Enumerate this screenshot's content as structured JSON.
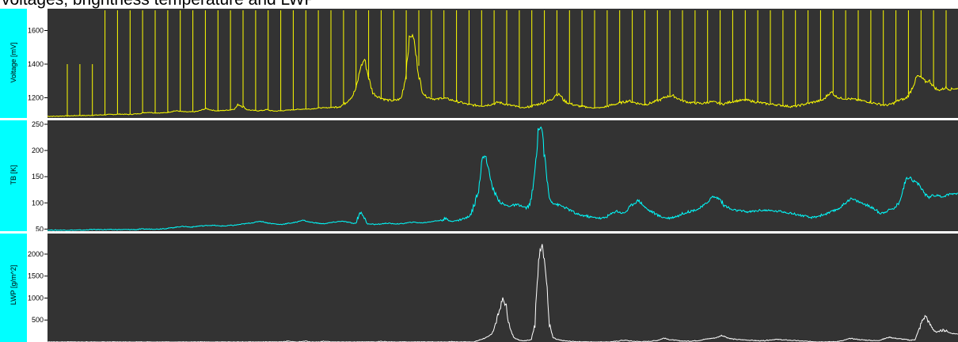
{
  "header": {
    "caption": "voltages, brightness temperature and LWP"
  },
  "chart_data": [
    {
      "type": "line",
      "ylabel": "Voltage [mV]",
      "ylim": [
        1080,
        1720
      ],
      "yticks": [
        1200,
        1400,
        1600
      ],
      "color": "#ffff00",
      "background": "#333333",
      "labelColor": "#00ffff",
      "series": [
        {
          "name": "",
          "values": [
            1090,
            1090,
            1090,
            1091,
            1092,
            1092,
            1093,
            1094,
            1095,
            1094,
            1095,
            1096,
            1097,
            1098,
            1099,
            1100,
            1101,
            1102,
            1103,
            1102,
            1101,
            1103,
            1104,
            1108,
            1112,
            1114,
            1111,
            1110,
            1110,
            1111,
            1115,
            1121,
            1122,
            1118,
            1116,
            1116,
            1117,
            1120,
            1128,
            1136,
            1129,
            1124,
            1122,
            1124,
            1126,
            1128,
            1134,
            1160,
            1150,
            1130,
            1126,
            1124,
            1123,
            1125,
            1130,
            1123,
            1121,
            1122,
            1124,
            1126,
            1128,
            1130,
            1131,
            1133,
            1133,
            1134,
            1137,
            1140,
            1140,
            1141,
            1143,
            1145,
            1150,
            1163,
            1186,
            1210,
            1260,
            1380,
            1430,
            1320,
            1230,
            1210,
            1200,
            1190,
            1185,
            1183,
            1187,
            1196,
            1310,
            1560,
            1570,
            1390,
            1250,
            1210,
            1200,
            1194,
            1190,
            1200,
            1196,
            1189,
            1183,
            1176,
            1171,
            1163,
            1158,
            1156,
            1154,
            1153,
            1156,
            1160,
            1166,
            1174,
            1166,
            1160,
            1154,
            1150,
            1144,
            1140,
            1144,
            1150,
            1156,
            1164,
            1170,
            1180,
            1190,
            1218,
            1220,
            1185,
            1170,
            1162,
            1154,
            1150,
            1146,
            1143,
            1140,
            1140,
            1141,
            1144,
            1152,
            1158,
            1164,
            1170,
            1176,
            1182,
            1175,
            1168,
            1163,
            1160,
            1165,
            1174,
            1183,
            1190,
            1205,
            1210,
            1211,
            1197,
            1185,
            1178,
            1172,
            1170,
            1168,
            1166,
            1170,
            1176,
            1174,
            1168,
            1162,
            1168,
            1175,
            1180,
            1183,
            1185,
            1186,
            1182,
            1176,
            1172,
            1168,
            1164,
            1162,
            1160,
            1156,
            1154,
            1150,
            1148,
            1150,
            1154,
            1160,
            1166,
            1172,
            1177,
            1182,
            1190,
            1220,
            1233,
            1208,
            1198,
            1196,
            1194,
            1192,
            1188,
            1184,
            1180,
            1176,
            1170,
            1165,
            1160,
            1156,
            1158,
            1166,
            1180,
            1190,
            1192,
            1220,
            1275,
            1330,
            1320,
            1295,
            1300,
            1268,
            1245,
            1250,
            1260,
            1250,
            1255,
            1254
          ]
        }
      ],
      "spikes": [
        1400,
        1400,
        1400,
        1720,
        1720,
        1720,
        1720,
        1720,
        1720,
        1720,
        1720,
        1720,
        1720,
        1720,
        1720,
        1720,
        1720,
        1720,
        1720,
        1720,
        1720,
        1720,
        1720,
        1720,
        1720,
        1720,
        1720,
        1720,
        1720,
        1720,
        1720,
        1720,
        1720,
        1720,
        1720,
        1720,
        1720,
        1720,
        1720,
        1720,
        1720,
        1720,
        1720,
        1720,
        1720,
        1720,
        1720,
        1720,
        1720,
        1720,
        1720,
        1720,
        1720,
        1720,
        1720,
        1720,
        1720,
        1720,
        1720,
        1720,
        1720,
        1720,
        1720,
        1720,
        1720,
        1720,
        1720,
        1720,
        1720,
        1720,
        1720
      ]
    },
    {
      "type": "line",
      "ylabel": "TB [K]",
      "ylim": [
        46,
        256
      ],
      "yticks": [
        50,
        100,
        150,
        200,
        250
      ],
      "color": "#00ffff",
      "background": "#333333",
      "labelColor": "#00ffff",
      "series": [
        {
          "name": "",
          "values": [
            48,
            48,
            48,
            48,
            48,
            48,
            48,
            48,
            48,
            48,
            48,
            49,
            49,
            49,
            49,
            49,
            49,
            49,
            49,
            49,
            49,
            49,
            49,
            49,
            49,
            50,
            50,
            50,
            50,
            50,
            50,
            51,
            51,
            52,
            53,
            54,
            55,
            55,
            54,
            54,
            55,
            56,
            56,
            57,
            57,
            57,
            56,
            56,
            56,
            57,
            57,
            58,
            59,
            60,
            61,
            62,
            63,
            65,
            64,
            62,
            61,
            60,
            59,
            59,
            60,
            61,
            62,
            63,
            66,
            67,
            64,
            63,
            62,
            61,
            60,
            61,
            62,
            63,
            64,
            65,
            64,
            63,
            61,
            61,
            82,
            76,
            60,
            60,
            59,
            59,
            60,
            61,
            61,
            60,
            60,
            60,
            61,
            62,
            63,
            63,
            62,
            62,
            63,
            64,
            65,
            66,
            67,
            70,
            66,
            65,
            66,
            68,
            70,
            72,
            80,
            100,
            128,
            185,
            190,
            150,
            125,
            110,
            100,
            96,
            94,
            95,
            96,
            96,
            92,
            90,
            100,
            145,
            240,
            245,
            170,
            110,
            100,
            97,
            95,
            92,
            88,
            85,
            80,
            77,
            76,
            75,
            73,
            72,
            72,
            70,
            72,
            76,
            80,
            85,
            82,
            80,
            86,
            95,
            100,
            105,
            98,
            90,
            85,
            82,
            77,
            74,
            72,
            71,
            72,
            74,
            76,
            80,
            82,
            84,
            86,
            88,
            92,
            97,
            105,
            112,
            110,
            107,
            95,
            92,
            87,
            86,
            85,
            84,
            83,
            83,
            84,
            85,
            86,
            86,
            85,
            85,
            84,
            84,
            83,
            82,
            80,
            79,
            77,
            76,
            74,
            72,
            72,
            74,
            76,
            78,
            80,
            83,
            86,
            90,
            95,
            102,
            108,
            106,
            103,
            100,
            97,
            94,
            90,
            86,
            80,
            82,
            85,
            88,
            90,
            100,
            120,
            145,
            150,
            142,
            138,
            130,
            118,
            110,
            115,
            114,
            113,
            112,
            115,
            117,
            118,
            118
          ]
        }
      ]
    },
    {
      "type": "line",
      "ylabel": "LWP [g/m^2]",
      "ylim": [
        0,
        2450
      ],
      "yticks": [
        500,
        1000,
        1500,
        2000
      ],
      "color": "#ffffff",
      "background": "#333333",
      "labelColor": "#00ffff",
      "series": [
        {
          "name": "",
          "values": [
            0,
            0,
            0,
            0,
            0,
            0,
            0,
            0,
            0,
            0,
            0,
            0,
            0,
            0,
            0,
            0,
            0,
            0,
            0,
            0,
            0,
            0,
            0,
            0,
            0,
            0,
            0,
            0,
            0,
            0,
            0,
            0,
            0,
            0,
            0,
            0,
            0,
            0,
            0,
            0,
            0,
            0,
            0,
            0,
            0,
            0,
            0,
            0,
            0,
            0,
            0,
            0,
            0,
            0,
            0,
            0,
            0,
            0,
            0,
            0,
            0,
            0,
            0,
            0,
            0,
            0,
            10,
            20,
            5,
            0,
            0,
            10,
            20,
            8,
            0,
            0,
            0,
            20,
            10,
            0,
            0,
            5,
            3,
            0,
            0,
            0,
            0,
            0,
            0,
            0,
            0,
            0,
            0,
            20,
            10,
            0,
            0,
            0,
            0,
            0,
            0,
            0,
            0,
            0,
            0,
            0,
            0,
            0,
            0,
            0,
            0,
            0,
            0,
            10,
            0,
            0,
            0,
            0,
            0,
            0,
            30,
            60,
            90,
            120,
            200,
            400,
            700,
            980,
            800,
            300,
            120,
            60,
            40,
            30,
            40,
            60,
            400,
            1900,
            2300,
            1600,
            400,
            100,
            60,
            40,
            30,
            20,
            15,
            10,
            8,
            6,
            4,
            3,
            2,
            1,
            0,
            0,
            0,
            5,
            10,
            20,
            35,
            40,
            30,
            20,
            15,
            10,
            8,
            12,
            18,
            25,
            35,
            60,
            90,
            60,
            50,
            40,
            30,
            25,
            20,
            20,
            25,
            30,
            40,
            55,
            70,
            80,
            90,
            110,
            150,
            120,
            90,
            70,
            60,
            55,
            50,
            45,
            40,
            35,
            30,
            25,
            30,
            40,
            50,
            60,
            55,
            48,
            45,
            40,
            35,
            30,
            25,
            20,
            15,
            10,
            8,
            6,
            5,
            4,
            3,
            5,
            10,
            20,
            30,
            60,
            80,
            70,
            60,
            50,
            45,
            40,
            35,
            30,
            40,
            60,
            90,
            110,
            90,
            80,
            70,
            60,
            50,
            40,
            60,
            250,
            480,
            600,
            420,
            300,
            220,
            250,
            270,
            240,
            200,
            190,
            180
          ]
        }
      ]
    }
  ]
}
